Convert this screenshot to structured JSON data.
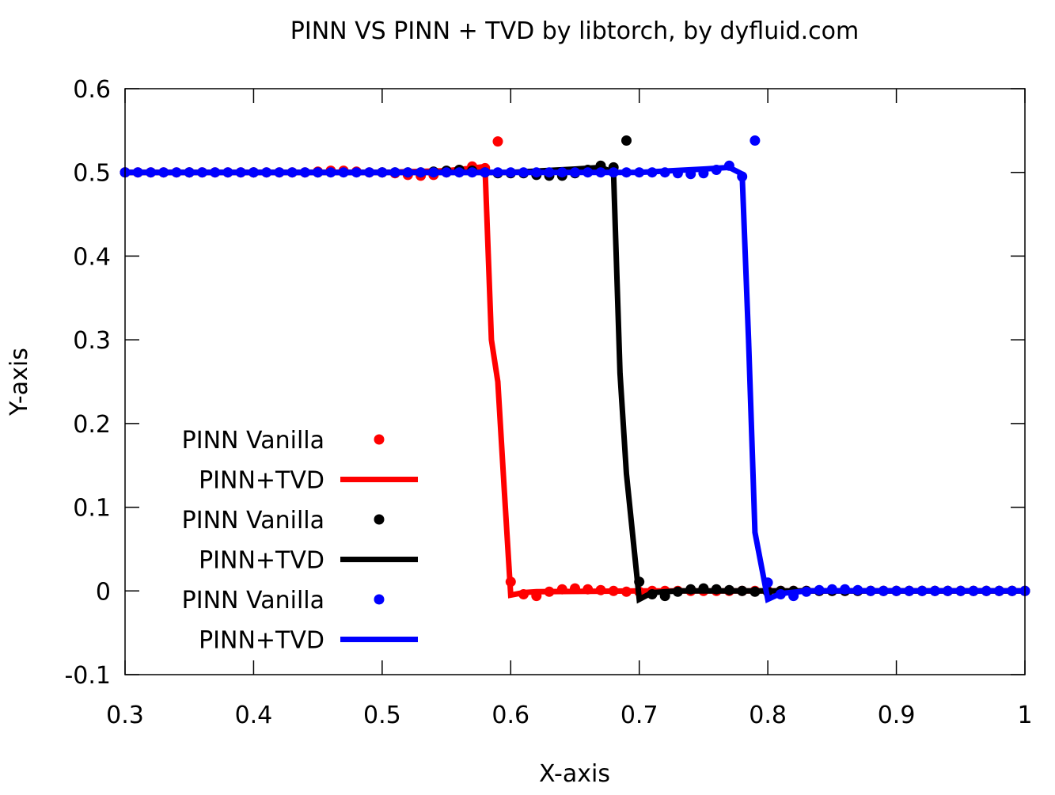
{
  "chart_data": {
    "type": "scatter",
    "title": "PINN VS PINN + TVD by libtorch, by dyfluid.com",
    "xlabel": "X-axis",
    "ylabel": "Y-axis",
    "xlim": [
      0.3,
      1.0
    ],
    "ylim": [
      -0.1,
      0.6
    ],
    "xticks": [
      "0.3",
      "0.4",
      "0.5",
      "0.6",
      "0.7",
      "0.8",
      "0.9",
      "1"
    ],
    "yticks": [
      "-0.1",
      "0",
      "0.1",
      "0.2",
      "0.3",
      "0.4",
      "0.5",
      "0.6"
    ],
    "grid": false,
    "legend_position": "bottom-left",
    "series": [
      {
        "name": "PINN Vanilla",
        "style": "points",
        "color": "#ff0000",
        "points": [
          [
            0.3,
            0.5
          ],
          [
            0.31,
            0.5
          ],
          [
            0.32,
            0.5
          ],
          [
            0.33,
            0.5
          ],
          [
            0.34,
            0.5
          ],
          [
            0.35,
            0.5
          ],
          [
            0.36,
            0.5
          ],
          [
            0.37,
            0.5
          ],
          [
            0.38,
            0.5
          ],
          [
            0.39,
            0.5
          ],
          [
            0.4,
            0.5
          ],
          [
            0.41,
            0.5
          ],
          [
            0.42,
            0.5
          ],
          [
            0.43,
            0.5
          ],
          [
            0.44,
            0.5
          ],
          [
            0.45,
            0.501
          ],
          [
            0.46,
            0.502
          ],
          [
            0.47,
            0.502
          ],
          [
            0.48,
            0.501
          ],
          [
            0.49,
            0.5
          ],
          [
            0.5,
            0.5
          ],
          [
            0.51,
            0.499
          ],
          [
            0.52,
            0.497
          ],
          [
            0.53,
            0.496
          ],
          [
            0.54,
            0.497
          ],
          [
            0.55,
            0.5
          ],
          [
            0.56,
            0.503
          ],
          [
            0.57,
            0.507
          ],
          [
            0.58,
            0.505
          ],
          [
            0.59,
            0.537
          ],
          [
            0.6,
            0.011
          ],
          [
            0.61,
            -0.004
          ],
          [
            0.62,
            -0.006
          ],
          [
            0.63,
            -0.001
          ],
          [
            0.64,
            0.002
          ],
          [
            0.65,
            0.003
          ],
          [
            0.66,
            0.002
          ],
          [
            0.67,
            0.001
          ],
          [
            0.68,
            0.0
          ],
          [
            0.69,
            -0.001
          ],
          [
            0.7,
            -0.001
          ],
          [
            0.71,
            0.0
          ],
          [
            0.72,
            0.0
          ],
          [
            0.73,
            0.0
          ],
          [
            0.74,
            0.0
          ],
          [
            0.75,
            0.0
          ],
          [
            0.76,
            0.0
          ],
          [
            0.77,
            0.0
          ],
          [
            0.78,
            0.0
          ],
          [
            0.79,
            0.0
          ],
          [
            0.8,
            0.0
          ],
          [
            0.81,
            0.0
          ],
          [
            0.82,
            0.0
          ],
          [
            0.83,
            0.0
          ],
          [
            0.84,
            0.0
          ],
          [
            0.85,
            0.0
          ],
          [
            0.86,
            0.0
          ],
          [
            0.87,
            0.0
          ],
          [
            0.88,
            0.0
          ],
          [
            0.89,
            0.0
          ],
          [
            0.9,
            0.0
          ],
          [
            0.91,
            0.0
          ],
          [
            0.92,
            0.0
          ],
          [
            0.93,
            0.0
          ],
          [
            0.94,
            0.0
          ],
          [
            0.95,
            0.0
          ],
          [
            0.96,
            0.0
          ],
          [
            0.97,
            0.0
          ],
          [
            0.98,
            0.0
          ],
          [
            0.99,
            0.0
          ],
          [
            1.0,
            0.0
          ]
        ]
      },
      {
        "name": "PINN+TVD",
        "style": "line",
        "color": "#ff0000",
        "points": [
          [
            0.3,
            0.5
          ],
          [
            0.4,
            0.5
          ],
          [
            0.5,
            0.5
          ],
          [
            0.55,
            0.502
          ],
          [
            0.57,
            0.505
          ],
          [
            0.58,
            0.507
          ],
          [
            0.585,
            0.3
          ],
          [
            0.59,
            0.25
          ],
          [
            0.595,
            0.12
          ],
          [
            0.6,
            -0.005
          ],
          [
            0.61,
            -0.002
          ],
          [
            0.62,
            -0.001
          ],
          [
            0.7,
            0.0
          ],
          [
            0.8,
            0.0
          ],
          [
            0.9,
            0.0
          ],
          [
            1.0,
            0.0
          ]
        ]
      },
      {
        "name": "PINN Vanilla",
        "style": "points",
        "color": "#000000",
        "points": [
          [
            0.3,
            0.5
          ],
          [
            0.35,
            0.5
          ],
          [
            0.4,
            0.5
          ],
          [
            0.45,
            0.5
          ],
          [
            0.5,
            0.5
          ],
          [
            0.51,
            0.5
          ],
          [
            0.52,
            0.5
          ],
          [
            0.53,
            0.5
          ],
          [
            0.54,
            0.501
          ],
          [
            0.55,
            0.502
          ],
          [
            0.56,
            0.503
          ],
          [
            0.57,
            0.502
          ],
          [
            0.58,
            0.5
          ],
          [
            0.59,
            0.499
          ],
          [
            0.6,
            0.499
          ],
          [
            0.61,
            0.499
          ],
          [
            0.62,
            0.497
          ],
          [
            0.63,
            0.496
          ],
          [
            0.64,
            0.496
          ],
          [
            0.65,
            0.499
          ],
          [
            0.66,
            0.503
          ],
          [
            0.67,
            0.508
          ],
          [
            0.68,
            0.506
          ],
          [
            0.69,
            0.538
          ],
          [
            0.7,
            0.011
          ],
          [
            0.71,
            -0.004
          ],
          [
            0.72,
            -0.006
          ],
          [
            0.73,
            -0.001
          ],
          [
            0.74,
            0.002
          ],
          [
            0.75,
            0.003
          ],
          [
            0.76,
            0.002
          ],
          [
            0.77,
            0.001
          ],
          [
            0.78,
            0.0
          ],
          [
            0.79,
            -0.001
          ],
          [
            0.8,
            -0.001
          ],
          [
            0.81,
            0.0
          ],
          [
            0.82,
            0.0
          ],
          [
            0.83,
            0.0
          ],
          [
            0.84,
            0.0
          ],
          [
            0.85,
            0.0
          ],
          [
            0.86,
            0.0
          ],
          [
            0.87,
            0.0
          ],
          [
            0.88,
            0.0
          ],
          [
            0.89,
            0.0
          ],
          [
            0.9,
            0.0
          ],
          [
            0.91,
            0.0
          ],
          [
            0.92,
            0.0
          ],
          [
            0.93,
            0.0
          ],
          [
            0.94,
            0.0
          ],
          [
            0.95,
            0.0
          ],
          [
            0.96,
            0.0
          ],
          [
            0.97,
            0.0
          ],
          [
            0.98,
            0.0
          ],
          [
            0.99,
            0.0
          ],
          [
            1.0,
            0.0
          ]
        ]
      },
      {
        "name": "PINN+TVD",
        "style": "line",
        "color": "#000000",
        "points": [
          [
            0.3,
            0.5
          ],
          [
            0.5,
            0.5
          ],
          [
            0.6,
            0.5
          ],
          [
            0.65,
            0.504
          ],
          [
            0.67,
            0.506
          ],
          [
            0.68,
            0.5
          ],
          [
            0.685,
            0.26
          ],
          [
            0.69,
            0.14
          ],
          [
            0.7,
            -0.01
          ],
          [
            0.71,
            -0.002
          ],
          [
            0.73,
            0.0
          ],
          [
            0.8,
            0.0
          ],
          [
            0.9,
            0.0
          ],
          [
            1.0,
            0.0
          ]
        ]
      },
      {
        "name": "PINN Vanilla",
        "style": "points",
        "color": "#0000ff",
        "points": [
          [
            0.3,
            0.5
          ],
          [
            0.31,
            0.5
          ],
          [
            0.32,
            0.5
          ],
          [
            0.33,
            0.5
          ],
          [
            0.34,
            0.5
          ],
          [
            0.35,
            0.5
          ],
          [
            0.36,
            0.5
          ],
          [
            0.37,
            0.5
          ],
          [
            0.38,
            0.5
          ],
          [
            0.39,
            0.5
          ],
          [
            0.4,
            0.5
          ],
          [
            0.41,
            0.5
          ],
          [
            0.42,
            0.5
          ],
          [
            0.43,
            0.5
          ],
          [
            0.44,
            0.5
          ],
          [
            0.45,
            0.5
          ],
          [
            0.46,
            0.5
          ],
          [
            0.47,
            0.5
          ],
          [
            0.48,
            0.5
          ],
          [
            0.49,
            0.5
          ],
          [
            0.5,
            0.5
          ],
          [
            0.51,
            0.5
          ],
          [
            0.52,
            0.5
          ],
          [
            0.53,
            0.5
          ],
          [
            0.54,
            0.5
          ],
          [
            0.55,
            0.5
          ],
          [
            0.56,
            0.5
          ],
          [
            0.57,
            0.5
          ],
          [
            0.58,
            0.5
          ],
          [
            0.59,
            0.5
          ],
          [
            0.6,
            0.5
          ],
          [
            0.61,
            0.5
          ],
          [
            0.62,
            0.5
          ],
          [
            0.63,
            0.5
          ],
          [
            0.64,
            0.5
          ],
          [
            0.65,
            0.5
          ],
          [
            0.66,
            0.5
          ],
          [
            0.67,
            0.5
          ],
          [
            0.68,
            0.5
          ],
          [
            0.69,
            0.5
          ],
          [
            0.7,
            0.5
          ],
          [
            0.71,
            0.5
          ],
          [
            0.72,
            0.5
          ],
          [
            0.73,
            0.499
          ],
          [
            0.74,
            0.498
          ],
          [
            0.75,
            0.499
          ],
          [
            0.76,
            0.503
          ],
          [
            0.77,
            0.508
          ],
          [
            0.78,
            0.495
          ],
          [
            0.79,
            0.538
          ],
          [
            0.8,
            0.01
          ],
          [
            0.81,
            -0.004
          ],
          [
            0.82,
            -0.006
          ],
          [
            0.83,
            -0.001
          ],
          [
            0.84,
            0.001
          ],
          [
            0.85,
            0.002
          ],
          [
            0.86,
            0.002
          ],
          [
            0.87,
            0.001
          ],
          [
            0.88,
            0.0
          ],
          [
            0.89,
            0.0
          ],
          [
            0.9,
            0.0
          ],
          [
            0.91,
            0.0
          ],
          [
            0.92,
            0.0
          ],
          [
            0.93,
            0.0
          ],
          [
            0.94,
            0.0
          ],
          [
            0.95,
            0.0
          ],
          [
            0.96,
            0.0
          ],
          [
            0.97,
            0.0
          ],
          [
            0.98,
            0.0
          ],
          [
            0.99,
            0.0
          ],
          [
            1.0,
            0.0
          ]
        ]
      },
      {
        "name": "PINN+TVD",
        "style": "line",
        "color": "#0000ff",
        "points": [
          [
            0.3,
            0.5
          ],
          [
            0.5,
            0.5
          ],
          [
            0.7,
            0.5
          ],
          [
            0.75,
            0.504
          ],
          [
            0.77,
            0.506
          ],
          [
            0.78,
            0.498
          ],
          [
            0.785,
            0.3
          ],
          [
            0.79,
            0.07
          ],
          [
            0.8,
            -0.01
          ],
          [
            0.81,
            -0.003
          ],
          [
            0.83,
            0.0
          ],
          [
            0.9,
            0.0
          ],
          [
            1.0,
            0.0
          ]
        ]
      }
    ]
  }
}
